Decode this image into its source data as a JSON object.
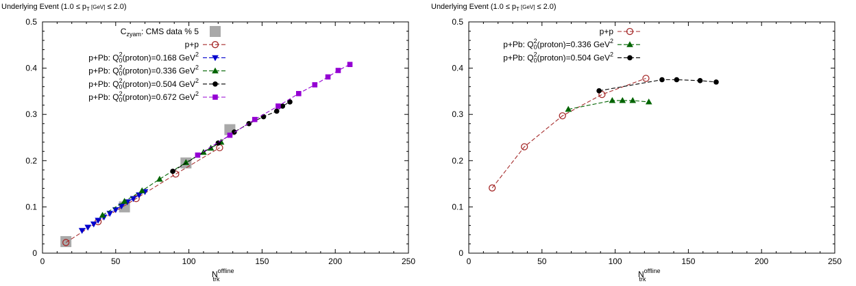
{
  "chart_data": [
    {
      "type": "scatter",
      "title_prefix": "Underlying Event (1.0 ≤ p",
      "title_sub": "T",
      "title_unit": " [GeV]",
      "title_suffix": " ≤ 2.0)",
      "xlabel_main": "N",
      "xlabel_sup": "offline",
      "xlabel_sub": "trk",
      "xlim": [
        0,
        250
      ],
      "ylim": [
        0,
        0.5
      ],
      "xticks": [
        "0",
        "50",
        "100",
        "150",
        "200",
        "250"
      ],
      "yticks": [
        "0",
        "0.1",
        "0.2",
        "0.3",
        "0.4",
        "0.5"
      ],
      "legend_position": "top-left",
      "series": [
        {
          "name": "C_zyam: CMS data % 5",
          "label_parts": [
            "C",
            "zyam",
            ": CMS data % 5"
          ],
          "color": "#a9a9a9",
          "marker": "gray-square",
          "line": false,
          "x": [
            16,
            56,
            98,
            128
          ],
          "y": [
            0.025,
            0.1,
            0.195,
            0.267
          ]
        },
        {
          "name": "p+p",
          "label_parts": [
            "p+p"
          ],
          "color": "#a52a2a",
          "marker": "open-circle",
          "line": true,
          "x": [
            16,
            38,
            64,
            91,
            121
          ],
          "y": [
            0.023,
            0.068,
            0.118,
            0.171,
            0.228
          ]
        },
        {
          "name": "p+Pb: Q0^2(proton)=0.168 GeV^2",
          "label_parts": [
            "p+Pb: Q",
            "2",
            "0",
            "(proton)=0.168 GeV",
            "2"
          ],
          "color": "#0000cd",
          "marker": "triangle-down",
          "line": true,
          "x": [
            27,
            31,
            35,
            38,
            42,
            46,
            50,
            54,
            58,
            62,
            66,
            70
          ],
          "y": [
            0.049,
            0.056,
            0.063,
            0.071,
            0.078,
            0.086,
            0.094,
            0.102,
            0.111,
            0.118,
            0.126,
            0.133
          ]
        },
        {
          "name": "p+Pb: Q0^2(proton)=0.336 GeV^2",
          "label_parts": [
            "p+Pb: Q",
            "2",
            "0",
            "(proton)=0.336 GeV",
            "2"
          ],
          "color": "#006400",
          "marker": "triangle-up",
          "line": true,
          "x": [
            41,
            56,
            68,
            80,
            98,
            110,
            115,
            122
          ],
          "y": [
            0.082,
            0.112,
            0.135,
            0.16,
            0.196,
            0.218,
            0.227,
            0.24
          ]
        },
        {
          "name": "p+Pb: Q0^2(proton)=0.504 GeV^2",
          "label_parts": [
            "p+Pb: Q",
            "2",
            "0",
            "(proton)=0.504 GeV",
            "2"
          ],
          "color": "#000000",
          "marker": "filled-circle",
          "line": true,
          "x": [
            89,
            120,
            131,
            141,
            151,
            160,
            164,
            169
          ],
          "y": [
            0.177,
            0.238,
            0.262,
            0.28,
            0.295,
            0.307,
            0.318,
            0.327
          ]
        },
        {
          "name": "p+Pb: Q0^2(proton)=0.672 GeV^2",
          "label_parts": [
            "p+Pb: Q",
            "2",
            "0",
            "(proton)=0.672 GeV",
            "2"
          ],
          "color": "#9400d3",
          "marker": "filled-square",
          "line": true,
          "x": [
            106,
            128,
            145,
            161,
            175,
            186,
            195,
            202,
            210
          ],
          "y": [
            0.212,
            0.255,
            0.289,
            0.318,
            0.345,
            0.364,
            0.381,
            0.395,
            0.408
          ]
        }
      ]
    },
    {
      "type": "scatter",
      "title_prefix": "Underlying Event (1.0 ≤ p",
      "title_sub": "T",
      "title_unit": " [GeV]",
      "title_suffix": " ≤ 2.0)",
      "xlabel_main": "N",
      "xlabel_sup": "offline",
      "xlabel_sub": "trk",
      "xlim": [
        0,
        250
      ],
      "ylim": [
        0,
        0.5
      ],
      "xticks": [
        "0",
        "50",
        "100",
        "150",
        "200",
        "250"
      ],
      "yticks": [
        "0",
        "0.1",
        "0.2",
        "0.3",
        "0.4",
        "0.5"
      ],
      "legend_position": "top-left",
      "series": [
        {
          "name": "p+p",
          "label_parts": [
            "p+p"
          ],
          "color": "#a52a2a",
          "marker": "open-circle",
          "line": true,
          "x": [
            16,
            38,
            64,
            91,
            121
          ],
          "y": [
            0.141,
            0.23,
            0.297,
            0.343,
            0.378
          ]
        },
        {
          "name": "p+Pb: Q0^2(proton)=0.336 GeV^2",
          "label_parts": [
            "p+Pb: Q",
            "2",
            "0",
            "(proton)=0.336 GeV",
            "2"
          ],
          "color": "#006400",
          "marker": "triangle-up",
          "line": true,
          "x": [
            68,
            98,
            105,
            112,
            123
          ],
          "y": [
            0.311,
            0.33,
            0.33,
            0.33,
            0.327
          ]
        },
        {
          "name": "p+Pb: Q0^2(proton)=0.504 GeV^2",
          "label_parts": [
            "p+Pb: Q",
            "2",
            "0",
            "(proton)=0.504 GeV",
            "2"
          ],
          "color": "#000000",
          "marker": "filled-circle",
          "line": true,
          "x": [
            89,
            132,
            142,
            158,
            169
          ],
          "y": [
            0.351,
            0.375,
            0.375,
            0.373,
            0.37
          ]
        }
      ]
    }
  ]
}
